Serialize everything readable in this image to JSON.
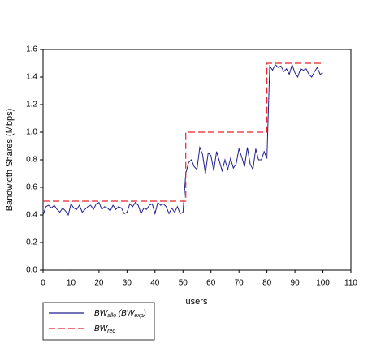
{
  "chart_data": {
    "type": "line",
    "x_label": "users",
    "y_label": "Bandwidth Shares (Mbps)",
    "xlim": [
      0,
      110
    ],
    "xticks": [
      0,
      10,
      20,
      30,
      40,
      50,
      60,
      70,
      80,
      90,
      100,
      110
    ],
    "ylim": [
      0,
      1.6
    ],
    "yticks": [
      {
        "value": 0,
        "label": "0.0"
      },
      0.2,
      0.4,
      0.6,
      0.8,
      {
        "value": 1,
        "label": "1.0"
      },
      1.2,
      1.4,
      1.6
    ],
    "grid": false,
    "legend": "bottom-left",
    "series": [
      {
        "name": "BW_{allo} (BW_{exp})",
        "color": "#1f1f8f",
        "dash": false,
        "x": [
          0,
          1,
          2,
          3,
          4,
          5,
          6,
          7,
          8,
          9,
          10,
          11,
          12,
          13,
          14,
          15,
          16,
          17,
          18,
          19,
          20,
          21,
          22,
          23,
          24,
          25,
          26,
          27,
          28,
          29,
          30,
          31,
          32,
          33,
          34,
          35,
          36,
          37,
          38,
          39,
          40,
          41,
          42,
          43,
          44,
          45,
          46,
          47,
          48,
          49,
          50,
          51,
          52,
          53,
          54,
          55,
          56,
          57,
          58,
          59,
          60,
          61,
          62,
          63,
          64,
          65,
          66,
          67,
          68,
          69,
          70,
          71,
          72,
          73,
          74,
          75,
          76,
          77,
          78,
          79,
          80,
          81,
          82,
          83,
          84,
          85,
          86,
          87,
          88,
          89,
          90,
          91,
          92,
          93,
          94,
          95,
          96,
          97,
          98,
          99,
          100
        ],
        "values": [
          0.4,
          0.46,
          0.47,
          0.45,
          0.47,
          0.44,
          0.42,
          0.45,
          0.43,
          0.4,
          0.48,
          0.45,
          0.44,
          0.47,
          0.42,
          0.44,
          0.46,
          0.47,
          0.44,
          0.48,
          0.49,
          0.44,
          0.46,
          0.45,
          0.43,
          0.47,
          0.44,
          0.46,
          0.45,
          0.41,
          0.42,
          0.48,
          0.46,
          0.49,
          0.47,
          0.41,
          0.45,
          0.44,
          0.47,
          0.48,
          0.41,
          0.49,
          0.47,
          0.48,
          0.46,
          0.41,
          0.45,
          0.42,
          0.46,
          0.41,
          0.42,
          0.7,
          0.78,
          0.8,
          0.75,
          0.73,
          0.89,
          0.84,
          0.7,
          0.85,
          0.83,
          0.72,
          0.86,
          0.79,
          0.72,
          0.8,
          0.73,
          0.81,
          0.74,
          0.77,
          0.88,
          0.82,
          0.75,
          0.89,
          0.77,
          0.73,
          0.88,
          0.8,
          0.8,
          0.86,
          0.81,
          1.48,
          1.45,
          1.49,
          1.47,
          1.48,
          1.44,
          1.46,
          1.42,
          1.49,
          1.43,
          1.4,
          1.46,
          1.45,
          1.46,
          1.42,
          1.4,
          1.44,
          1.47,
          1.42,
          1.43
        ]
      },
      {
        "name": "BW_{rec}",
        "color": "#e8232a",
        "dash": true,
        "x": [
          0,
          51,
          51,
          80,
          80,
          100
        ],
        "values": [
          0.5,
          0.5,
          1.0,
          1.0,
          1.5,
          1.5
        ]
      }
    ]
  }
}
